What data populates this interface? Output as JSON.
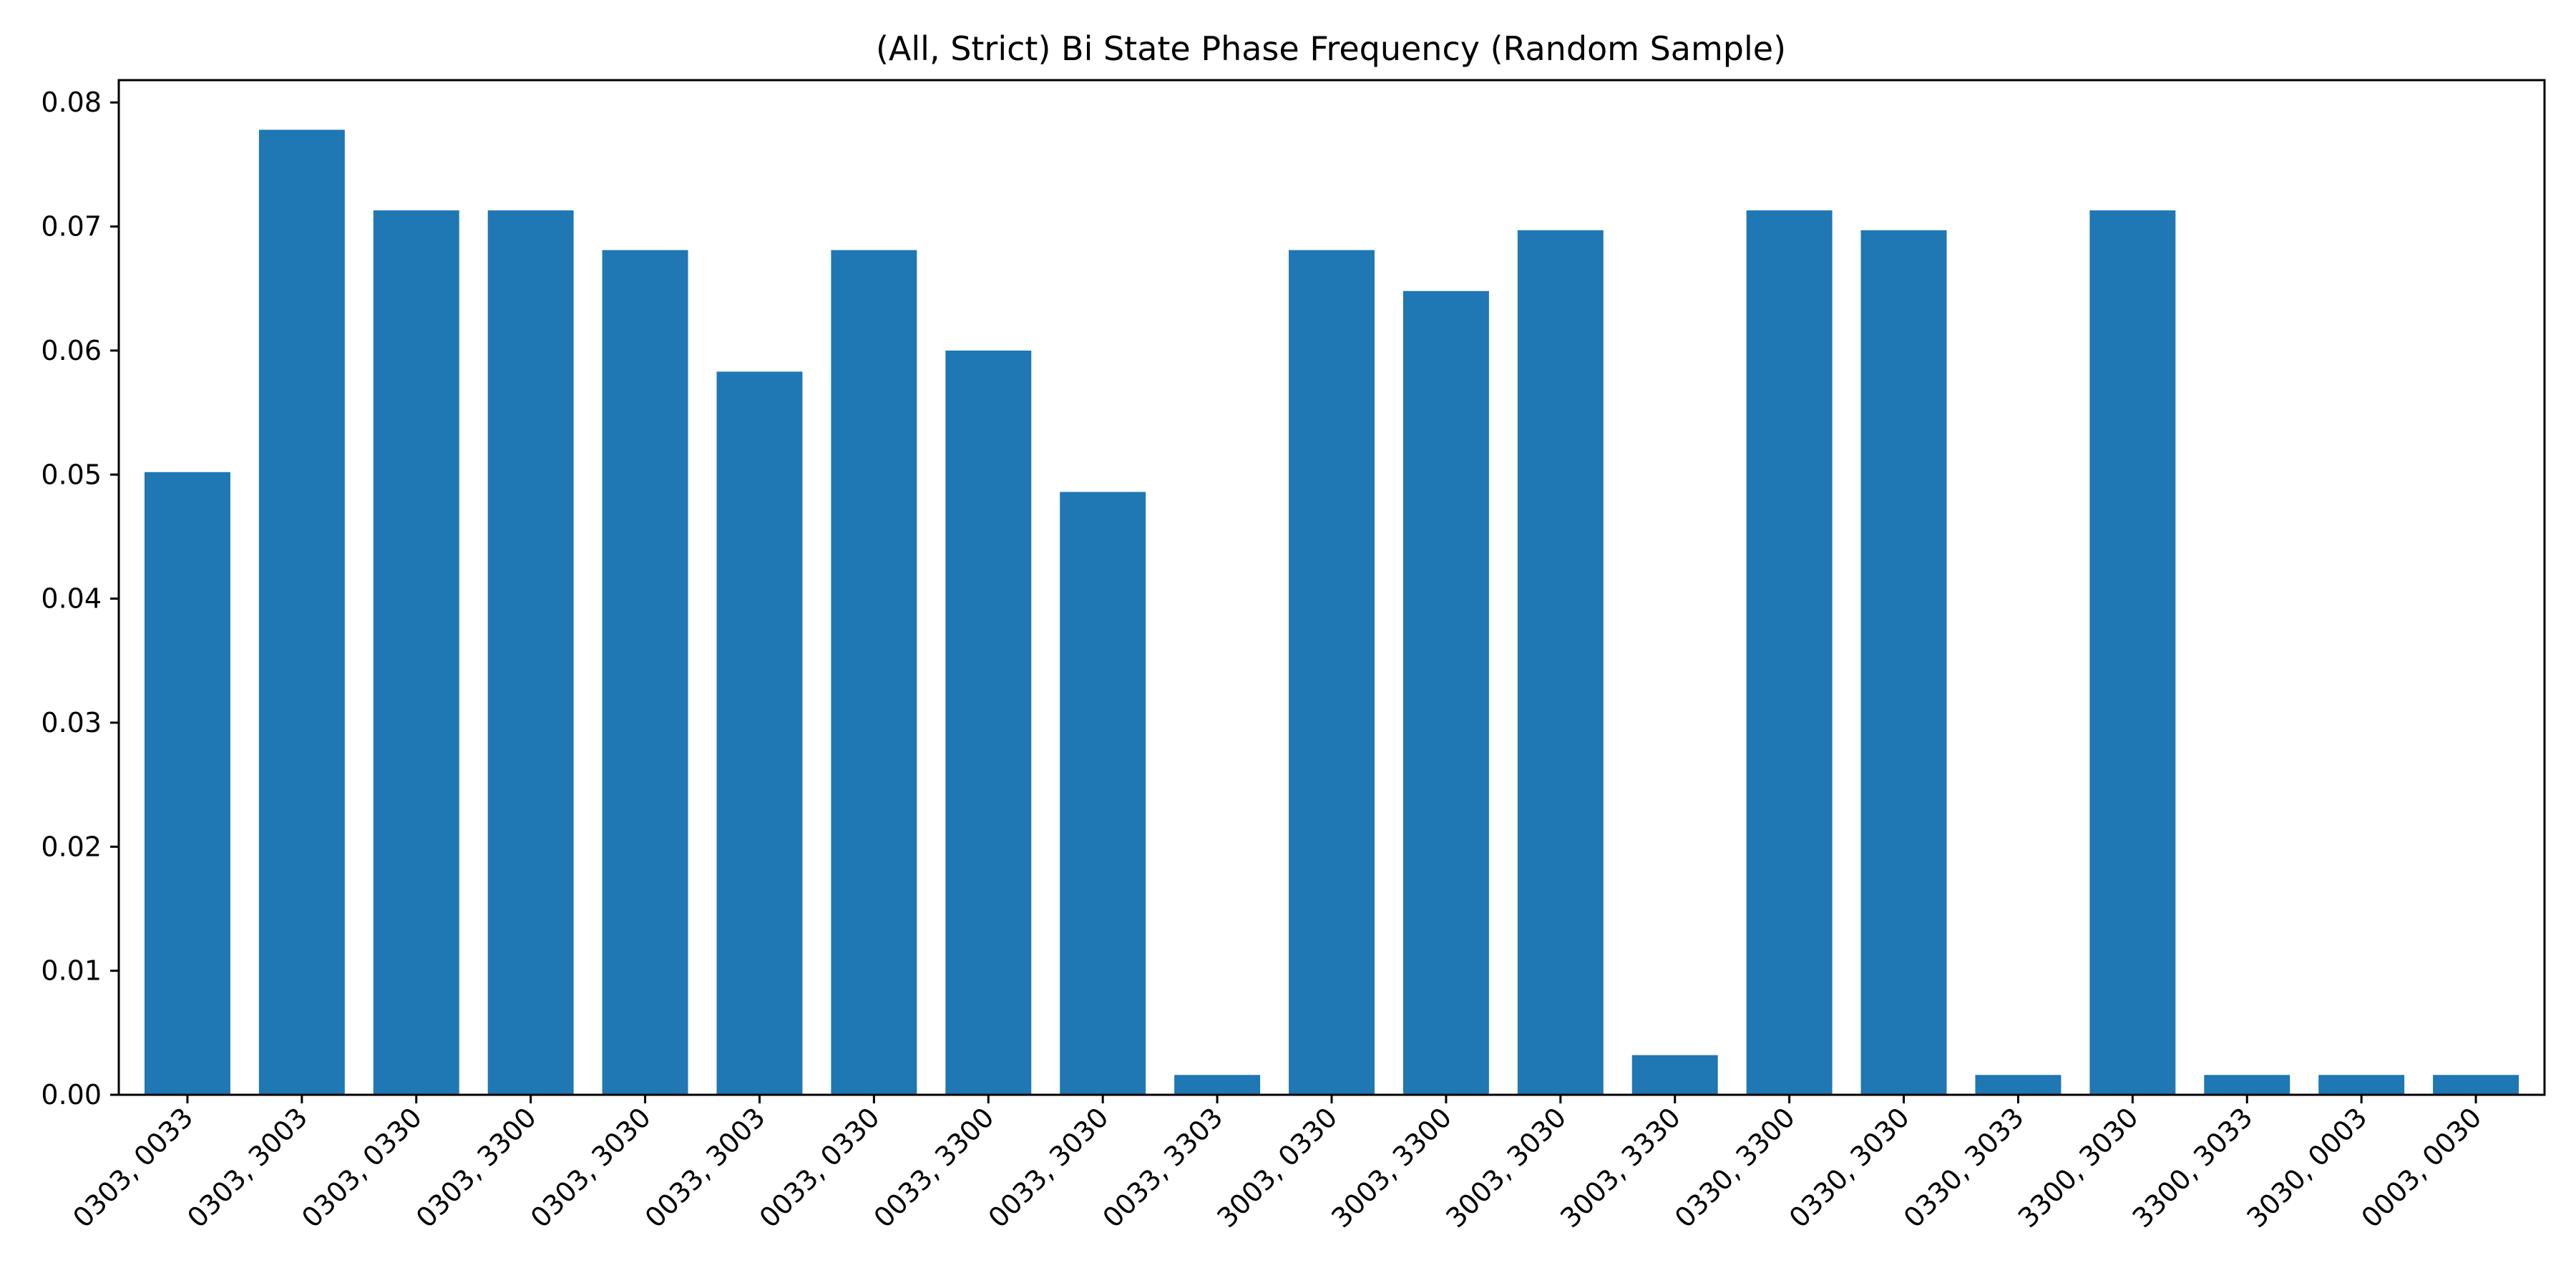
{
  "chart_data": {
    "type": "bar",
    "title": "(All, Strict) Bi State Phase Frequency (Random Sample)",
    "xlabel": "",
    "ylabel": "",
    "categories": [
      "0303, 0033",
      "0303, 3003",
      "0303, 0330",
      "0303, 3300",
      "0303, 3030",
      "0033, 3003",
      "0033, 0330",
      "0033, 3300",
      "0033, 3030",
      "0033, 3303",
      "3003, 0330",
      "3003, 3300",
      "3003, 3030",
      "3003, 3330",
      "0330, 3300",
      "0330, 3030",
      "0330, 3033",
      "3300, 3030",
      "3300, 3033",
      "3030, 0003",
      "0003, 0030"
    ],
    "values": [
      0.0502,
      0.0778,
      0.0713,
      0.0713,
      0.0681,
      0.0583,
      0.0681,
      0.06,
      0.0486,
      0.0016,
      0.0681,
      0.0648,
      0.0697,
      0.0032,
      0.0713,
      0.0697,
      0.0016,
      0.0713,
      0.0016,
      0.0016,
      0.0016
    ],
    "ylim": [
      0,
      0.0818
    ],
    "yticks": [
      "0.00",
      "0.01",
      "0.02",
      "0.03",
      "0.04",
      "0.05",
      "0.06",
      "0.07",
      "0.08"
    ],
    "bar_color": "#1f77b4",
    "grid": false,
    "legend": "none"
  }
}
